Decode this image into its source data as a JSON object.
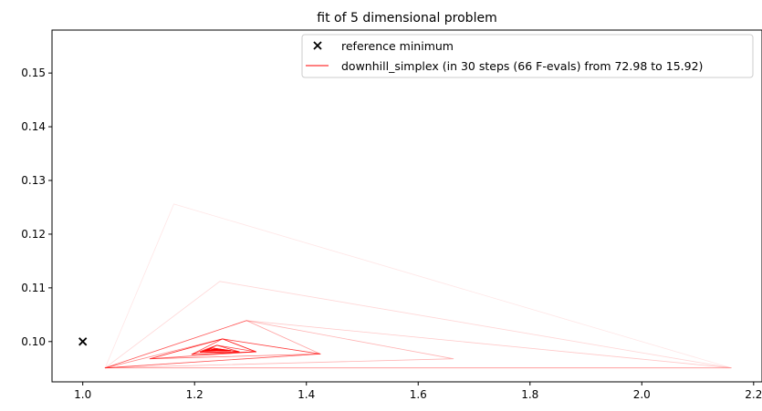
{
  "chart_data": {
    "type": "line",
    "title": "fit of 5 dimensional problem",
    "xlabel": "",
    "ylabel": "",
    "xlim": [
      0.945,
      2.215
    ],
    "ylim": [
      0.0925,
      0.158
    ],
    "x_ticks": [
      1.0,
      1.2,
      1.4,
      1.6,
      1.8,
      2.0,
      2.2
    ],
    "x_tick_labels": [
      "1.0",
      "1.2",
      "1.4",
      "1.6",
      "1.8",
      "2.0",
      "2.2"
    ],
    "y_ticks": [
      0.1,
      0.11,
      0.12,
      0.13,
      0.14,
      0.15
    ],
    "y_tick_labels": [
      "0.10",
      "0.11",
      "0.12",
      "0.13",
      "0.14",
      "0.15"
    ],
    "grid": false,
    "legend_position": "top-right",
    "colors": {
      "simplex": "#ff0000",
      "reference": "#000000"
    },
    "series": [
      {
        "name": "reference minimum",
        "kind": "scatter",
        "marker": "x",
        "points": [
          [
            1.0,
            0.1
          ]
        ]
      },
      {
        "name": "downhill_simplex (in 30 steps (66 F-evals) from 72.98 to 15.92)",
        "kind": "simplex-triangles",
        "triangles": [
          {
            "vertices": [
              [
                1.04,
                0.0951
              ],
              [
                1.163,
                0.1256
              ],
              [
                2.16,
                0.0951
              ]
            ],
            "opacity": 0.1
          },
          {
            "vertices": [
              [
                1.04,
                0.0951
              ],
              [
                1.245,
                0.1112
              ],
              [
                2.16,
                0.0951
              ]
            ],
            "opacity": 0.16
          },
          {
            "vertices": [
              [
                1.04,
                0.0951
              ],
              [
                1.293,
                0.1039
              ],
              [
                2.16,
                0.0951
              ]
            ],
            "opacity": 0.22
          },
          {
            "vertices": [
              [
                1.04,
                0.0951
              ],
              [
                1.293,
                0.1039
              ],
              [
                1.663,
                0.0968
              ]
            ],
            "opacity": 0.3
          },
          {
            "vertices": [
              [
                1.04,
                0.0951
              ],
              [
                1.293,
                0.1039
              ],
              [
                1.425,
                0.0977
              ]
            ],
            "opacity": 0.38
          },
          {
            "vertices": [
              [
                1.04,
                0.0951
              ],
              [
                1.25,
                0.1005
              ],
              [
                1.425,
                0.0977
              ]
            ],
            "opacity": 0.46
          },
          {
            "vertices": [
              [
                1.12,
                0.0968
              ],
              [
                1.25,
                0.1005
              ],
              [
                1.425,
                0.0977
              ]
            ],
            "opacity": 0.55
          },
          {
            "vertices": [
              [
                1.12,
                0.0968
              ],
              [
                1.25,
                0.1005
              ],
              [
                1.31,
                0.0981
              ]
            ],
            "opacity": 0.62
          },
          {
            "vertices": [
              [
                1.195,
                0.0976
              ],
              [
                1.25,
                0.1005
              ],
              [
                1.31,
                0.0981
              ]
            ],
            "opacity": 0.7
          },
          {
            "vertices": [
              [
                1.195,
                0.0976
              ],
              [
                1.24,
                0.0993
              ],
              [
                1.31,
                0.0981
              ]
            ],
            "opacity": 0.76
          },
          {
            "vertices": [
              [
                1.21,
                0.098
              ],
              [
                1.24,
                0.0993
              ],
              [
                1.28,
                0.0981
              ]
            ],
            "opacity": 0.82
          },
          {
            "vertices": [
              [
                1.21,
                0.098
              ],
              [
                1.232,
                0.0988
              ],
              [
                1.28,
                0.0981
              ]
            ],
            "opacity": 0.88
          },
          {
            "vertices": [
              [
                1.215,
                0.0982
              ],
              [
                1.232,
                0.0988
              ],
              [
                1.265,
                0.0983
              ]
            ],
            "opacity": 0.92
          },
          {
            "vertices": [
              [
                1.215,
                0.0982
              ],
              [
                1.235,
                0.0986
              ],
              [
                1.265,
                0.0983
              ]
            ],
            "opacity": 0.95
          },
          {
            "vertices": [
              [
                1.22,
                0.0983
              ],
              [
                1.235,
                0.0986
              ],
              [
                1.258,
                0.0983
              ]
            ],
            "opacity": 0.97
          },
          {
            "vertices": [
              [
                1.225,
                0.0984
              ],
              [
                1.235,
                0.0985
              ],
              [
                1.25,
                0.0984
              ]
            ],
            "opacity": 1.0
          }
        ]
      }
    ]
  }
}
